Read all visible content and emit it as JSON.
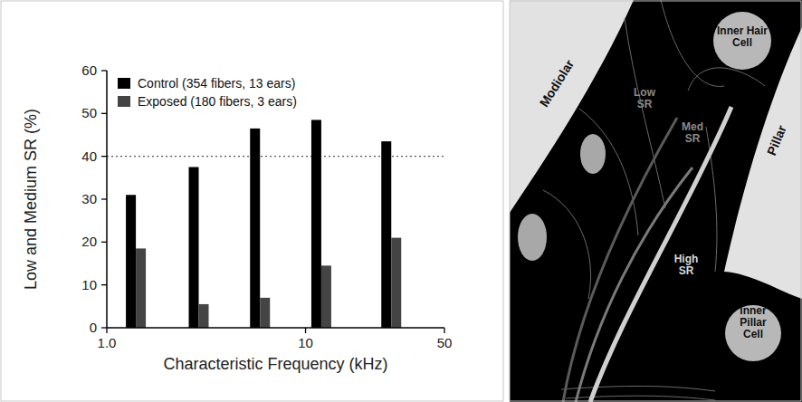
{
  "chart_data": {
    "type": "bar",
    "x_label": "Characteristic Frequency (kHz)",
    "y_label": "Low and Medium SR (%)",
    "x": [
      1.4,
      2.9,
      5.9,
      12,
      27
    ],
    "series": [
      {
        "name": "Control (354 fibers, 13 ears)",
        "color": "#000000",
        "values": [
          31,
          37.5,
          46.5,
          48.5,
          43.5
        ]
      },
      {
        "name": "Exposed (180 fibers, 3 ears)",
        "color": "#444444",
        "values": [
          18.5,
          5.5,
          7,
          14.5,
          21
        ]
      }
    ],
    "log": "x",
    "xlim": [
      1,
      50
    ],
    "xticks": [
      {
        "value": 1,
        "label": "1.0"
      },
      10,
      50
    ],
    "ylim": [
      0,
      60
    ],
    "yticks": [
      0,
      10,
      20,
      30,
      40,
      50,
      60
    ],
    "reference_line": 40,
    "legend": "top-left"
  },
  "diagram": {
    "labels": [
      "Inner Hair Cell",
      "Modiolar",
      "Pillar",
      "Low SR",
      "Med SR",
      "High SR",
      "Inner Pillar Cell"
    ]
  }
}
